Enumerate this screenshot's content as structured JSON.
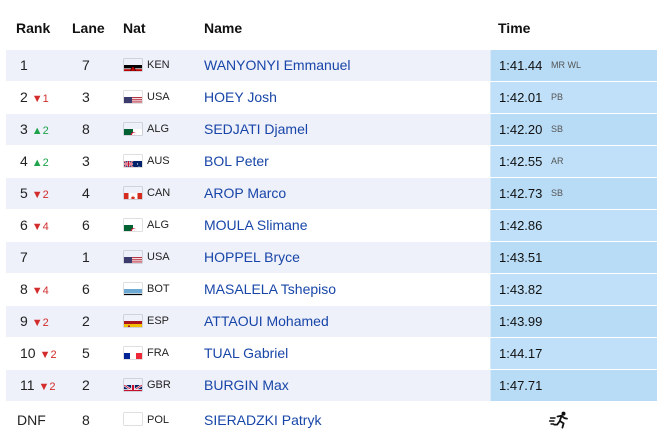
{
  "headers": {
    "rank": "Rank",
    "lane": "Lane",
    "nat": "Nat",
    "name": "Name",
    "time": "Time"
  },
  "rows": [
    {
      "rank": "1",
      "move": "",
      "move_dir": "",
      "lane": "7",
      "nat": "KEN",
      "flag": "ken",
      "name": "WANYONYI Emmanuel",
      "time": "1:41.44",
      "record": "MR WL"
    },
    {
      "rank": "2",
      "move": "▼1",
      "move_dir": "down",
      "lane": "3",
      "nat": "USA",
      "flag": "usa",
      "name": "HOEY Josh",
      "time": "1:42.01",
      "record": "PB"
    },
    {
      "rank": "3",
      "move": "▲2",
      "move_dir": "up",
      "lane": "8",
      "nat": "ALG",
      "flag": "alg",
      "name": "SEDJATI Djamel",
      "time": "1:42.20",
      "record": "SB"
    },
    {
      "rank": "4",
      "move": "▲2",
      "move_dir": "up",
      "lane": "3",
      "nat": "AUS",
      "flag": "aus",
      "name": "BOL Peter",
      "time": "1:42.55",
      "record": "AR"
    },
    {
      "rank": "5",
      "move": "▼2",
      "move_dir": "down",
      "lane": "4",
      "nat": "CAN",
      "flag": "can",
      "name": "AROP Marco",
      "time": "1:42.73",
      "record": "SB"
    },
    {
      "rank": "6",
      "move": "▼4",
      "move_dir": "down",
      "lane": "6",
      "nat": "ALG",
      "flag": "alg",
      "name": "MOULA Slimane",
      "time": "1:42.86",
      "record": ""
    },
    {
      "rank": "7",
      "move": "",
      "move_dir": "",
      "lane": "1",
      "nat": "USA",
      "flag": "usa",
      "name": "HOPPEL Bryce",
      "time": "1:43.51",
      "record": ""
    },
    {
      "rank": "8",
      "move": "▼4",
      "move_dir": "down",
      "lane": "6",
      "nat": "BOT",
      "flag": "bot",
      "name": "MASALELA Tshepiso",
      "time": "1:43.82",
      "record": ""
    },
    {
      "rank": "9",
      "move": "▼2",
      "move_dir": "down",
      "lane": "2",
      "nat": "ESP",
      "flag": "esp",
      "name": "ATTAOUI Mohamed",
      "time": "1:43.99",
      "record": ""
    },
    {
      "rank": "10",
      "move": "▼2",
      "move_dir": "down",
      "lane": "5",
      "nat": "FRA",
      "flag": "fra",
      "name": "TUAL Gabriel",
      "time": "1:44.17",
      "record": ""
    },
    {
      "rank": "11",
      "move": "▼2",
      "move_dir": "down",
      "lane": "2",
      "nat": "GBR",
      "flag": "gbr",
      "name": "BURGIN Max",
      "time": "1:47.71",
      "record": ""
    }
  ],
  "dnf_row": {
    "rank": "DNF",
    "lane": "8",
    "nat": "POL",
    "flag": "pol",
    "name": "SIERADZKI Patryk",
    "status_icon": "running-figure-icon"
  },
  "colors": {
    "name_link": "#1846a8",
    "time_bg": "#b9dcf6",
    "row_alt": "#eef0fa",
    "down": "#d22c2c",
    "up": "#1ea34a"
  }
}
